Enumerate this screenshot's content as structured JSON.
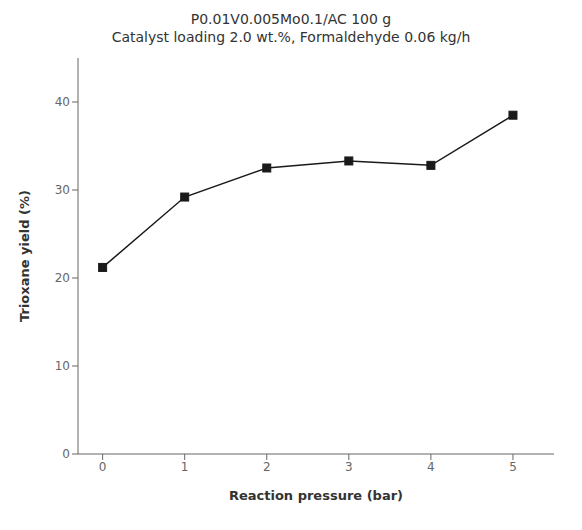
{
  "chart_data": {
    "type": "line",
    "title": "P0.01V0.005Mo0.1/AC 100 g",
    "subtitle": "Catalyst loading 2.0 wt.%, Formaldehyde 0.06 kg/h",
    "xlabel": "Reaction pressure (bar)",
    "ylabel": "Trioxane yield (%)",
    "x": [
      0,
      1,
      2,
      3,
      4,
      5
    ],
    "values": [
      21.2,
      29.2,
      32.5,
      33.3,
      32.8,
      38.5
    ],
    "color": "#1a1a1a",
    "marker": "square",
    "xlim": [
      -0.3,
      5.5
    ],
    "ylim": [
      0,
      45
    ],
    "xticks": [
      0,
      1,
      2,
      3,
      4,
      5
    ],
    "yticks": [
      0,
      10,
      20,
      30,
      40
    ],
    "grid": false
  }
}
